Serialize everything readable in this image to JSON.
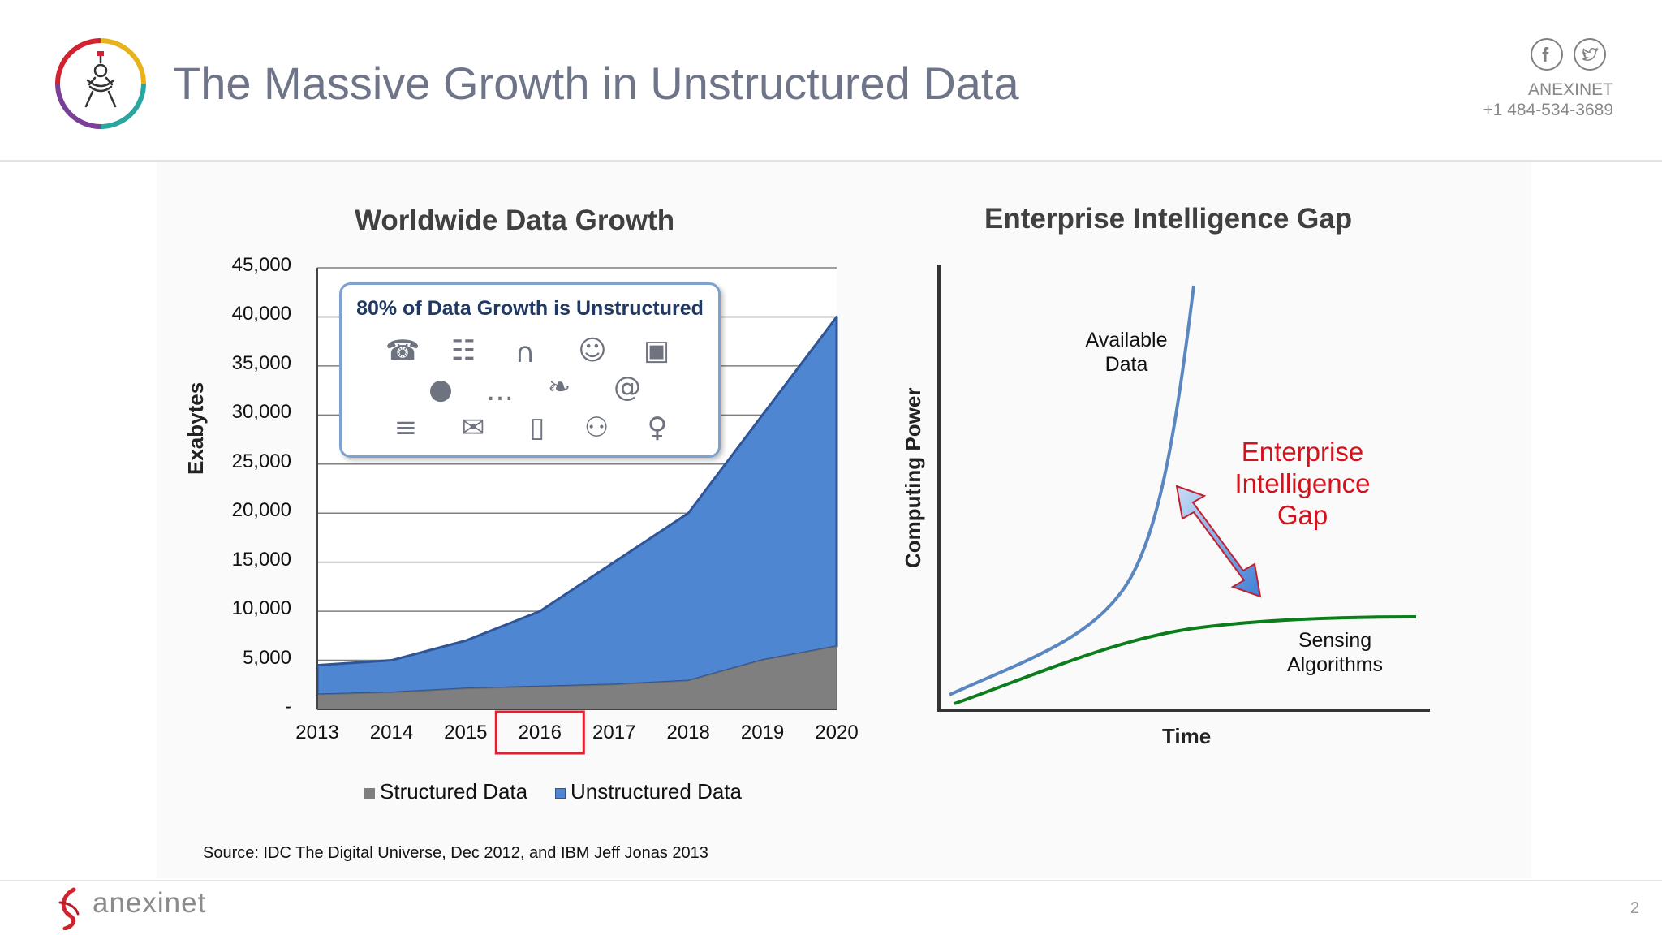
{
  "slide": {
    "title": "The Massive Growth in Unstructured Data",
    "company": "ANEXINET",
    "phone": "+1 484-534-3689",
    "source": "Source: IDC The Digital Universe, Dec 2012, and IBM Jeff Jonas 2013",
    "brand": "anexinet",
    "page_number": "2",
    "social_icons": [
      "facebook-icon",
      "twitter-icon"
    ]
  },
  "colors": {
    "title": "#6f7589",
    "structured": "#7f7f7f",
    "unstructured": "#4f86d1",
    "unstructured_edge": "#2f5597",
    "highlight_box": "#e0202e",
    "available_line": "#5b87c1",
    "sensing_line": "#0b7d1b",
    "gap_text": "#d3121e"
  },
  "callout": {
    "text": "80% of Data Growth is Unstructured",
    "icons": [
      "phone-icon",
      "chat-bubbles-icon",
      "headset-icon",
      "people-icon",
      "profile-card-icon",
      "globe-icon",
      "speech-bubble-icon",
      "bird-icon",
      "at-sign-icon",
      "newspaper-icon",
      "envelope-icon",
      "tablet-icon",
      "presenter-icon",
      "microphone-icon"
    ]
  },
  "highlight": {
    "label": "2016"
  },
  "chart_data": [
    {
      "type": "area",
      "title": "Worldwide Data Growth",
      "xlabel": "",
      "ylabel": "Exabytes",
      "categories": [
        "2013",
        "2014",
        "2015",
        "2016",
        "2017",
        "2018",
        "2019",
        "2020"
      ],
      "ylim": [
        0,
        45000
      ],
      "yticks": [
        0,
        5000,
        10000,
        15000,
        20000,
        25000,
        30000,
        35000,
        40000,
        45000
      ],
      "ytick_labels": [
        "-",
        "5,000",
        "10,000",
        "15,000",
        "20,000",
        "25,000",
        "30,000",
        "35,000",
        "40,000",
        "45,000"
      ],
      "stacked": true,
      "grid": true,
      "legend_position": "bottom",
      "series": [
        {
          "name": "Structured Data",
          "values": [
            1500,
            1700,
            2100,
            2300,
            2500,
            2900,
            5000,
            6400
          ]
        },
        {
          "name": "Unstructured Data",
          "values": [
            3000,
            3300,
            4900,
            7700,
            12500,
            17100,
            25000,
            33600
          ]
        }
      ]
    },
    {
      "type": "line",
      "title": "Enterprise Intelligence Gap",
      "xlabel": "Time",
      "ylabel": "Computing Power",
      "series": [
        {
          "name": "Available Data",
          "label": "Available Data"
        },
        {
          "name": "Sensing Algorithms",
          "label": "Sensing Algorithms"
        }
      ],
      "annotation": "Enterprise Intelligence Gap"
    }
  ]
}
